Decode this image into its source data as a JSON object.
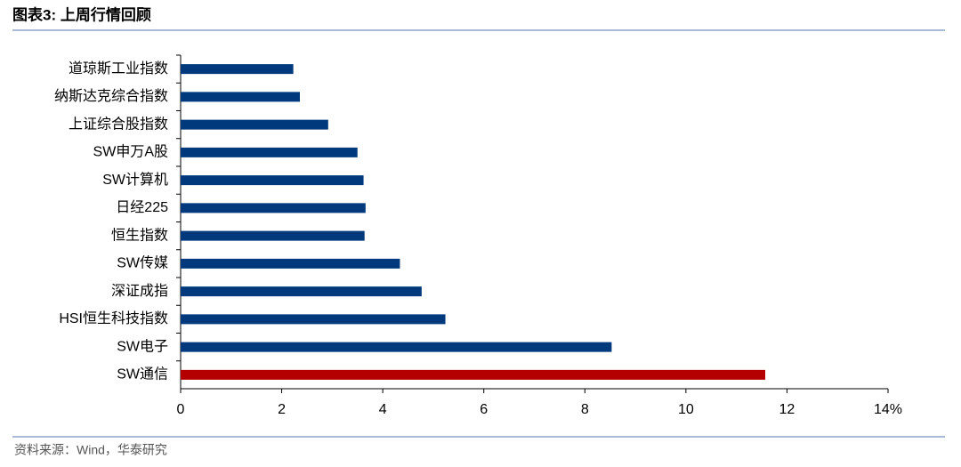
{
  "chart_data": {
    "type": "bar",
    "orientation": "horizontal",
    "title": "图表3:  上周行情回顾",
    "source": "资料来源：Wind，华泰研究",
    "categories": [
      "道琼斯工业指数",
      "纳斯达克综合指数",
      "上证综合股指数",
      "SW申万A股",
      "SW计算机",
      "日经225",
      "恒生指数",
      "SW传媒",
      "深证成指",
      "HSI恒生科技指数",
      "SW电子",
      "SW通信"
    ],
    "values": [
      2.23,
      2.36,
      2.92,
      3.5,
      3.62,
      3.66,
      3.64,
      4.34,
      4.77,
      5.24,
      8.53,
      11.57
    ],
    "colors": [
      "#003a7d",
      "#003a7d",
      "#003a7d",
      "#003a7d",
      "#003a7d",
      "#003a7d",
      "#003a7d",
      "#003a7d",
      "#003a7d",
      "#003a7d",
      "#003a7d",
      "#b40000"
    ],
    "xlim": [
      0,
      14
    ],
    "xticks": [
      0,
      2,
      4,
      6,
      8,
      10,
      12,
      {
        "value": 14,
        "label": "14%"
      }
    ],
    "grid": false
  }
}
